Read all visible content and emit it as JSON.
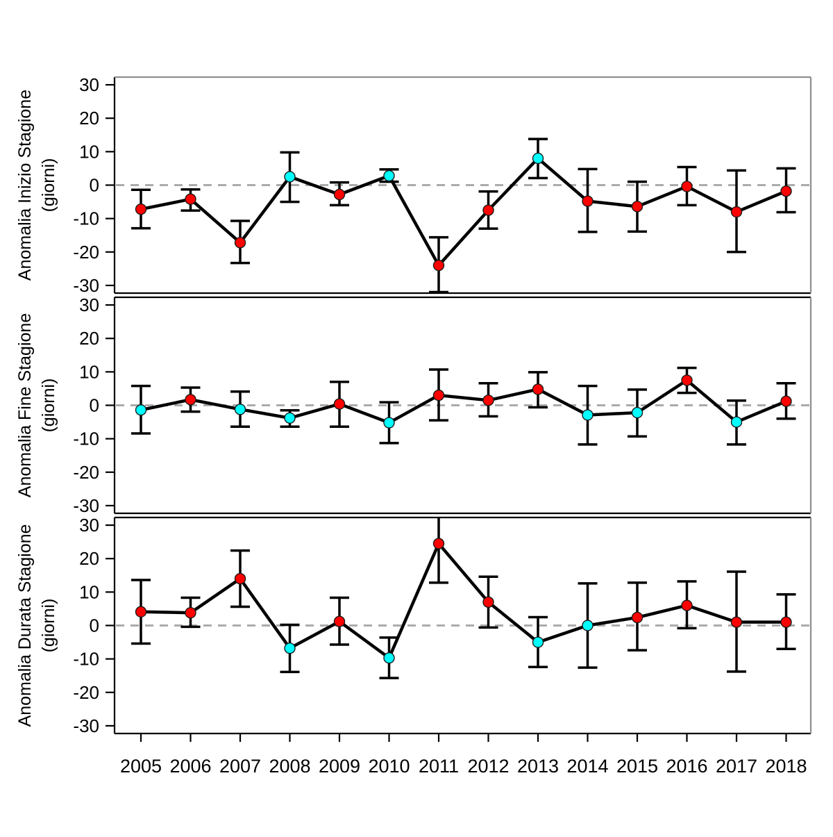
{
  "figure": {
    "background": "#ffffff"
  },
  "chart_data": {
    "type": "line",
    "title": "",
    "xlabel": "",
    "x_years": [
      2005,
      2006,
      2007,
      2008,
      2009,
      2010,
      2011,
      2012,
      2013,
      2014,
      2015,
      2016,
      2017,
      2018
    ],
    "yticks": [
      -30,
      -20,
      -10,
      0,
      10,
      20,
      30
    ],
    "ylim": [
      -32.3,
      32.3
    ],
    "zero_reference_line": 0,
    "grid": "off",
    "legend": "none",
    "error_bars": true,
    "palette": {
      "red": "#FF0000",
      "cyan": "#00FFFF",
      "line": "#000000",
      "marker_edge": "#1a1a1a",
      "dashed_zero": "#ABABAB",
      "panel_border": "#000000",
      "outer_border": "#8E8E8E"
    },
    "panels": [
      {
        "name": "inizio",
        "ylabel": [
          "Anomalia Inizio Stagione",
          "(giorni)"
        ],
        "points": [
          {
            "year": 2005,
            "value": -7.2,
            "lo": -12.9,
            "hi": -1.4,
            "color": "red"
          },
          {
            "year": 2006,
            "value": -4.2,
            "lo": -7.6,
            "hi": -1.3,
            "color": "red"
          },
          {
            "year": 2007,
            "value": -17.2,
            "lo": -23.3,
            "hi": -10.7,
            "color": "red"
          },
          {
            "year": 2008,
            "value": 2.5,
            "lo": -5.0,
            "hi": 9.8,
            "color": "cyan"
          },
          {
            "year": 2009,
            "value": -2.8,
            "lo": -6.0,
            "hi": 0.8,
            "color": "red"
          },
          {
            "year": 2010,
            "value": 2.8,
            "lo": 1.0,
            "hi": 4.7,
            "color": "cyan"
          },
          {
            "year": 2011,
            "value": -24.0,
            "lo": -32.0,
            "hi": -15.6,
            "color": "red"
          },
          {
            "year": 2012,
            "value": -7.5,
            "lo": -13.0,
            "hi": -1.9,
            "color": "red"
          },
          {
            "year": 2013,
            "value": 8.0,
            "lo": 2.1,
            "hi": 13.8,
            "color": "cyan"
          },
          {
            "year": 2014,
            "value": -4.8,
            "lo": -14.0,
            "hi": 4.8,
            "color": "red"
          },
          {
            "year": 2015,
            "value": -6.4,
            "lo": -13.9,
            "hi": 1.0,
            "color": "red"
          },
          {
            "year": 2016,
            "value": -0.4,
            "lo": -6.0,
            "hi": 5.4,
            "color": "red"
          },
          {
            "year": 2017,
            "value": -8.0,
            "lo": -20.0,
            "hi": 4.4,
            "color": "red"
          },
          {
            "year": 2018,
            "value": -1.8,
            "lo": -8.1,
            "hi": 5.0,
            "color": "red"
          }
        ]
      },
      {
        "name": "fine",
        "ylabel": [
          "Anomalia Fine Stagione",
          "(giorni)"
        ],
        "points": [
          {
            "year": 2005,
            "value": -1.4,
            "lo": -8.4,
            "hi": 5.8,
            "color": "cyan"
          },
          {
            "year": 2006,
            "value": 1.7,
            "lo": -1.9,
            "hi": 5.3,
            "color": "red"
          },
          {
            "year": 2007,
            "value": -1.2,
            "lo": -6.4,
            "hi": 4.1,
            "color": "cyan"
          },
          {
            "year": 2008,
            "value": -3.8,
            "lo": -6.4,
            "hi": -1.5,
            "color": "cyan"
          },
          {
            "year": 2009,
            "value": 0.4,
            "lo": -6.4,
            "hi": 7.0,
            "color": "red"
          },
          {
            "year": 2010,
            "value": -5.2,
            "lo": -11.3,
            "hi": 0.9,
            "color": "cyan"
          },
          {
            "year": 2011,
            "value": 3.0,
            "lo": -4.5,
            "hi": 10.7,
            "color": "red"
          },
          {
            "year": 2012,
            "value": 1.5,
            "lo": -3.3,
            "hi": 6.6,
            "color": "red"
          },
          {
            "year": 2013,
            "value": 4.8,
            "lo": -0.6,
            "hi": 9.9,
            "color": "red"
          },
          {
            "year": 2014,
            "value": -2.9,
            "lo": -11.7,
            "hi": 5.8,
            "color": "cyan"
          },
          {
            "year": 2015,
            "value": -2.2,
            "lo": -9.3,
            "hi": 4.7,
            "color": "cyan"
          },
          {
            "year": 2016,
            "value": 7.5,
            "lo": 3.7,
            "hi": 11.2,
            "color": "red"
          },
          {
            "year": 2017,
            "value": -5.0,
            "lo": -11.7,
            "hi": 1.4,
            "color": "cyan"
          },
          {
            "year": 2018,
            "value": 1.2,
            "lo": -4.0,
            "hi": 6.6,
            "color": "red"
          }
        ]
      },
      {
        "name": "durata",
        "ylabel": [
          "Anomalia Durata Stagione",
          "(giorni)"
        ],
        "points": [
          {
            "year": 2005,
            "value": 4.1,
            "lo": -5.4,
            "hi": 13.6,
            "color": "red"
          },
          {
            "year": 2006,
            "value": 3.8,
            "lo": -0.4,
            "hi": 8.3,
            "color": "red"
          },
          {
            "year": 2007,
            "value": 14.0,
            "lo": 5.6,
            "hi": 22.4,
            "color": "red"
          },
          {
            "year": 2008,
            "value": -6.8,
            "lo": -13.9,
            "hi": 0.2,
            "color": "cyan"
          },
          {
            "year": 2009,
            "value": 1.2,
            "lo": -5.7,
            "hi": 8.3,
            "color": "red"
          },
          {
            "year": 2010,
            "value": -9.7,
            "lo": -15.7,
            "hi": -3.6,
            "color": "cyan"
          },
          {
            "year": 2011,
            "value": 24.5,
            "lo": 12.8,
            "hi": 32.3,
            "color": "red",
            "hi_clipped": true
          },
          {
            "year": 2012,
            "value": 7.0,
            "lo": -0.6,
            "hi": 14.6,
            "color": "red"
          },
          {
            "year": 2013,
            "value": -5.0,
            "lo": -12.4,
            "hi": 2.5,
            "color": "cyan"
          },
          {
            "year": 2014,
            "value": 0.0,
            "lo": -12.6,
            "hi": 12.6,
            "color": "cyan"
          },
          {
            "year": 2015,
            "value": 2.4,
            "lo": -7.4,
            "hi": 12.8,
            "color": "red"
          },
          {
            "year": 2016,
            "value": 6.0,
            "lo": -0.8,
            "hi": 13.2,
            "color": "red"
          },
          {
            "year": 2017,
            "value": 1.0,
            "lo": -13.8,
            "hi": 16.1,
            "color": "red"
          },
          {
            "year": 2018,
            "value": 1.0,
            "lo": -7.0,
            "hi": 9.3,
            "color": "red"
          }
        ]
      }
    ]
  }
}
